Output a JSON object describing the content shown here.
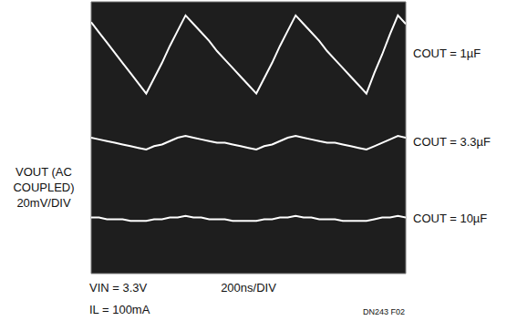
{
  "chart_data": {
    "type": "line",
    "x_label": "200ns/DIV",
    "y_label": [
      "VOUT (AC",
      "COUPLED)",
      "20mV/DIV"
    ],
    "annotations": [
      "VIN = 3.3V",
      "IL = 100mA",
      "DN243 F02"
    ],
    "xlim": [
      0,
      2000
    ],
    "xticks": [
      0,
      200,
      400,
      600,
      800,
      1000,
      1200,
      1400,
      1600,
      1800,
      2000
    ],
    "ylim": [
      0,
      160
    ],
    "yticks": [
      0,
      20,
      40,
      60,
      80,
      100,
      120,
      140,
      160
    ],
    "grid": true,
    "tick_labels": false,
    "x": [
      0,
      50,
      100,
      150,
      200,
      250,
      300,
      350,
      400,
      450,
      500,
      550,
      600,
      650,
      700,
      750,
      800,
      850,
      900,
      950,
      1000,
      1050,
      1100,
      1150,
      1200,
      1250,
      1300,
      1350,
      1400,
      1450,
      1500,
      1550,
      1600,
      1650,
      1700,
      1750,
      1800,
      1850,
      1900,
      1950,
      2000
    ],
    "series": [
      {
        "name": "COUT = 1µF",
        "color": "#ffffff",
        "values": [
          148,
          142,
          136,
          130,
          124,
          118,
          112,
          106,
          115,
          124,
          134,
          143,
          152,
          147,
          142,
          137,
          131,
          126,
          121,
          116,
          111,
          106,
          115,
          124,
          134,
          143,
          152,
          147,
          142,
          137,
          131,
          126,
          121,
          116,
          111,
          106,
          118,
          129,
          141,
          152,
          147
        ]
      },
      {
        "name": "COUT = 3.3µF",
        "color": "#ffffff",
        "values": [
          80,
          79,
          78,
          77,
          76,
          75,
          74,
          73,
          75,
          76,
          78,
          80,
          81,
          80,
          79,
          78,
          77,
          77,
          76,
          75,
          74,
          73,
          75,
          76,
          78,
          80,
          81,
          80,
          79,
          78,
          77,
          77,
          76,
          75,
          74,
          73,
          75,
          77,
          79,
          81,
          80
        ]
      },
      {
        "name": "COUT = 10µF",
        "color": "#ffffff",
        "values": [
          33,
          33,
          32,
          32,
          32,
          31,
          31,
          31,
          32,
          32,
          33,
          33,
          34,
          33,
          33,
          32,
          32,
          32,
          31,
          31,
          31,
          31,
          32,
          32,
          33,
          33,
          34,
          33,
          33,
          32,
          32,
          32,
          31,
          31,
          31,
          31,
          32,
          33,
          33,
          34,
          33
        ]
      }
    ]
  }
}
